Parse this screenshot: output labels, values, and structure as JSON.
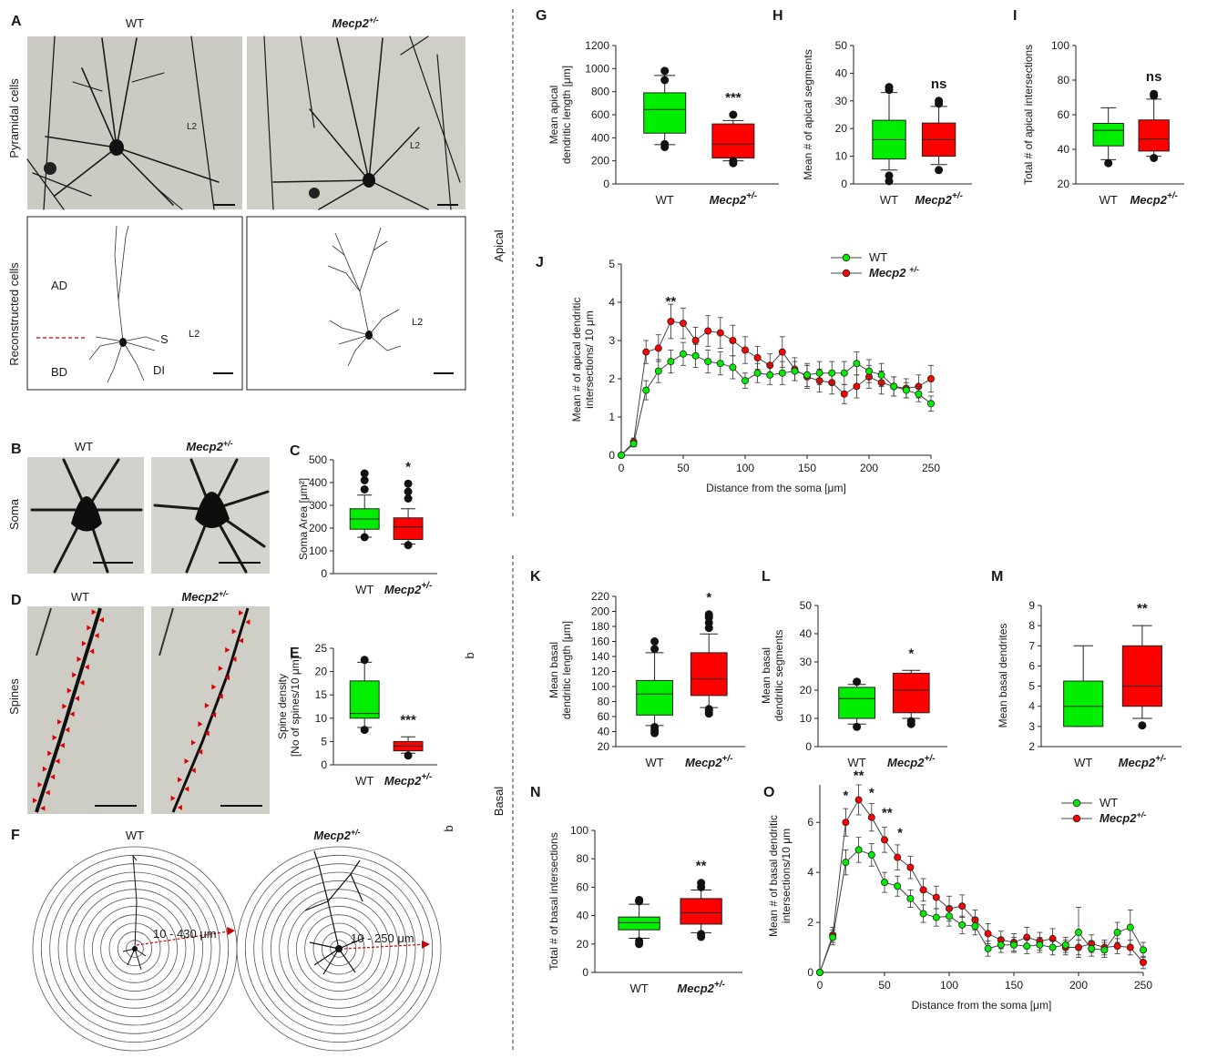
{
  "figure": {
    "section_apical": "Apical",
    "section_basal": "Basal",
    "stray_b1": "b",
    "stray_b2": "b"
  },
  "colors": {
    "wt": "#00ee00",
    "mecp2": "#ff0000",
    "micro_bg": "#c9c9c2",
    "ink": "#1a1a1a",
    "scale_red": "#cc0000"
  },
  "images": {
    "A": {
      "letter": "A",
      "col_wt": "WT",
      "col_mecp2": "Mecp2",
      "col_mecp2_sup": "+/-",
      "row1": "Pyramidal cells",
      "row2": "Reconstructed cells",
      "layer1": "L2",
      "layer2": "L2",
      "layer3": "L2",
      "layer4": "L2",
      "ad": "AD",
      "bd": "BD",
      "s": "S",
      "di": "DI"
    },
    "B": {
      "letter": "B",
      "col_wt": "WT",
      "col_mecp2": "Mecp2",
      "col_mecp2_sup": "+/-",
      "row": "Soma"
    },
    "D": {
      "letter": "D",
      "col_wt": "WT",
      "col_mecp2": "Mecp2",
      "col_mecp2_sup": "+/-",
      "row": "Spines"
    },
    "F": {
      "letter": "F",
      "col_wt": "WT",
      "col_mecp2": "Mecp2",
      "col_mecp2_sup": "+/-",
      "range_wt": "10 - 430 μm",
      "range_mecp2": "10 - 250 μm"
    }
  },
  "chart_data": [
    {
      "id": "C",
      "type": "box",
      "letter": "C",
      "ylabel": "Soma Area [μm²]",
      "ylim": [
        0,
        500
      ],
      "yticks": [
        0,
        100,
        200,
        300,
        400,
        500
      ],
      "categories": [
        "WT",
        "Mecp2"
      ],
      "cat_sup": [
        "",
        "+/-"
      ],
      "boxes": [
        {
          "whislo": 160,
          "q1": 195,
          "med": 240,
          "q3": 285,
          "whishi": 345,
          "fliers": [
            160,
            370,
            410,
            440
          ]
        },
        {
          "whislo": 130,
          "q1": 150,
          "med": 205,
          "q3": 245,
          "whishi": 285,
          "fliers": [
            125,
            330,
            360,
            395
          ]
        }
      ],
      "significance": [
        "",
        "*"
      ]
    },
    {
      "id": "E",
      "type": "box",
      "letter": "E",
      "ylabel": "Spine density",
      "ylabel2": "[No of spines/10 μm]",
      "ylim": [
        0,
        25
      ],
      "yticks": [
        0,
        5,
        10,
        15,
        20,
        25
      ],
      "categories": [
        "WT",
        "Mecp2"
      ],
      "cat_sup": [
        "",
        "+/-"
      ],
      "boxes": [
        {
          "whislo": 8,
          "q1": 10,
          "med": 11,
          "q3": 18,
          "whishi": 22,
          "fliers": [
            7.5,
            22.5
          ]
        },
        {
          "whislo": 2.5,
          "q1": 3,
          "med": 4,
          "q3": 5,
          "whishi": 6,
          "fliers": [
            2
          ]
        }
      ],
      "significance": [
        "",
        "***"
      ]
    },
    {
      "id": "G",
      "type": "box",
      "letter": "G",
      "ylabel": "Mean apical",
      "ylabel2": "dendritic length [μm]",
      "ylim": [
        0,
        1200
      ],
      "yticks": [
        0,
        200,
        400,
        600,
        800,
        1000,
        1200
      ],
      "categories": [
        "WT",
        "Mecp2"
      ],
      "cat_sup": [
        "",
        "+/-"
      ],
      "boxes": [
        {
          "whislo": 340,
          "q1": 440,
          "med": 645,
          "q3": 790,
          "whishi": 940,
          "fliers": [
            320,
            345,
            900,
            980
          ]
        },
        {
          "whislo": 200,
          "q1": 225,
          "med": 345,
          "q3": 520,
          "whishi": 550,
          "fliers": [
            180,
            200,
            600
          ]
        }
      ],
      "significance": [
        "",
        "***"
      ]
    },
    {
      "id": "H",
      "type": "box",
      "letter": "H",
      "ylabel": "Mean # of apical segments",
      "ylim": [
        0,
        50
      ],
      "yticks": [
        0,
        10,
        20,
        30,
        40,
        50
      ],
      "categories": [
        "WT",
        "Mecp2"
      ],
      "cat_sup": [
        "",
        "+/-"
      ],
      "boxes": [
        {
          "whislo": 5,
          "q1": 9,
          "med": 16,
          "q3": 23,
          "whishi": 33,
          "fliers": [
            1,
            3,
            34,
            35
          ]
        },
        {
          "whislo": 7,
          "q1": 10,
          "med": 16,
          "q3": 22,
          "whishi": 28,
          "fliers": [
            5,
            29,
            30
          ]
        }
      ],
      "significance": [
        "",
        "ns"
      ]
    },
    {
      "id": "I",
      "type": "box",
      "letter": "I",
      "ylabel": "Total # of apical intersections",
      "ylim": [
        20,
        100
      ],
      "yticks": [
        20,
        40,
        60,
        80,
        100
      ],
      "categories": [
        "WT",
        "Mecp2"
      ],
      "cat_sup": [
        "",
        "+/-"
      ],
      "boxes": [
        {
          "whislo": 34,
          "q1": 42,
          "med": 51,
          "q3": 55,
          "whishi": 64,
          "fliers": [
            32
          ]
        },
        {
          "whislo": 36,
          "q1": 39,
          "med": 46,
          "q3": 57,
          "whishi": 69,
          "fliers": [
            35,
            71,
            72
          ]
        }
      ],
      "significance": [
        "",
        "ns"
      ]
    },
    {
      "id": "J",
      "type": "line",
      "letter": "J",
      "xlabel": "Distance from the soma [μm]",
      "ylabel": "Mean # of apical dendritic",
      "ylabel2": "intersections/ 10 μm",
      "xlim": [
        0,
        250
      ],
      "ylim": [
        0,
        5
      ],
      "xticks": [
        0,
        50,
        100,
        150,
        200,
        250
      ],
      "yticks": [
        0,
        1,
        2,
        3,
        4,
        5
      ],
      "x": [
        0,
        10,
        20,
        30,
        40,
        50,
        60,
        70,
        80,
        90,
        100,
        110,
        120,
        130,
        140,
        150,
        160,
        170,
        180,
        190,
        200,
        210,
        220,
        230,
        240,
        250
      ],
      "series": [
        {
          "name": "WT",
          "sup": "",
          "values": [
            0,
            0.3,
            1.7,
            2.2,
            2.45,
            2.65,
            2.6,
            2.45,
            2.4,
            2.3,
            1.95,
            2.15,
            2.1,
            2.15,
            2.2,
            2.1,
            2.15,
            2.15,
            2.15,
            2.4,
            2.2,
            2.1,
            1.8,
            1.7,
            1.6,
            1.35
          ],
          "err": [
            0,
            0.08,
            0.25,
            0.3,
            0.3,
            0.3,
            0.3,
            0.3,
            0.3,
            0.3,
            0.2,
            0.25,
            0.25,
            0.3,
            0.25,
            0.3,
            0.3,
            0.3,
            0.3,
            0.3,
            0.3,
            0.3,
            0.25,
            0.2,
            0.2,
            0.2
          ]
        },
        {
          "name": "Mecp2 ",
          "sup": "+/-",
          "values": [
            0,
            0.35,
            2.7,
            2.8,
            3.5,
            3.45,
            3.0,
            3.25,
            3.2,
            3.0,
            2.75,
            2.55,
            2.35,
            2.7,
            2.25,
            2.05,
            1.95,
            1.9,
            1.6,
            1.8,
            2.05,
            1.9,
            1.8,
            1.75,
            1.8,
            2.0
          ],
          "err": [
            0,
            0.1,
            0.3,
            0.35,
            0.45,
            0.4,
            0.35,
            0.4,
            0.4,
            0.4,
            0.35,
            0.3,
            0.3,
            0.4,
            0.3,
            0.3,
            0.3,
            0.3,
            0.25,
            0.3,
            0.3,
            0.3,
            0.25,
            0.25,
            0.3,
            0.35
          ]
        }
      ],
      "annotations": [
        {
          "x": 40,
          "y": 3.9,
          "text": "**"
        }
      ]
    },
    {
      "id": "K",
      "type": "box",
      "letter": "K",
      "ylabel": "Mean basal",
      "ylabel2": "dendritic length [μm]",
      "ylim": [
        20,
        220
      ],
      "yticks": [
        20,
        40,
        60,
        80,
        100,
        120,
        140,
        160,
        180,
        200,
        220
      ],
      "categories": [
        "WT",
        "Mecp2"
      ],
      "cat_sup": [
        "",
        "+/-"
      ],
      "boxes": [
        {
          "whislo": 48,
          "q1": 62,
          "med": 90,
          "q3": 108,
          "whishi": 145,
          "fliers": [
            38,
            42,
            46,
            150,
            160
          ]
        },
        {
          "whislo": 72,
          "q1": 88,
          "med": 110,
          "q3": 145,
          "whishi": 170,
          "fliers": [
            64,
            68,
            70,
            178,
            185,
            192,
            196
          ]
        }
      ],
      "significance": [
        "",
        "*"
      ]
    },
    {
      "id": "L",
      "type": "box",
      "letter": "L",
      "ylabel": "Mean basal",
      "ylabel2": "dendritic segments",
      "ylim": [
        0,
        50
      ],
      "yticks": [
        0,
        10,
        20,
        30,
        40,
        50
      ],
      "categories": [
        "WT",
        "Mecp2"
      ],
      "cat_sup": [
        "",
        "+/-"
      ],
      "boxes": [
        {
          "whislo": 8,
          "q1": 10,
          "med": 17,
          "q3": 21,
          "whishi": 22,
          "fliers": [
            7,
            23
          ]
        },
        {
          "whislo": 10,
          "q1": 12,
          "med": 20,
          "q3": 26,
          "whishi": 27,
          "fliers": [
            8,
            9
          ]
        }
      ],
      "significance": [
        "",
        "*"
      ]
    },
    {
      "id": "M",
      "type": "box",
      "letter": "M",
      "ylabel": "Mean basal dendrites",
      "ylim": [
        2,
        9
      ],
      "yticks": [
        2,
        3,
        4,
        5,
        6,
        7,
        8,
        9
      ],
      "categories": [
        "WT",
        "Mecp2"
      ],
      "cat_sup": [
        "",
        "+/-"
      ],
      "boxes": [
        {
          "whislo": 3,
          "q1": 3,
          "med": 4,
          "q3": 5.25,
          "whishi": 7,
          "fliers": []
        },
        {
          "whislo": 3.4,
          "q1": 4,
          "med": 5,
          "q3": 7,
          "whishi": 8,
          "fliers": [
            3.05
          ]
        }
      ],
      "significance": [
        "",
        "**"
      ]
    },
    {
      "id": "N",
      "type": "box",
      "letter": "N",
      "ylabel": "Total # of basal intersections",
      "ylim": [
        0,
        100
      ],
      "yticks": [
        0,
        20,
        40,
        60,
        80,
        100
      ],
      "categories": [
        "WT",
        "Mecp2"
      ],
      "cat_sup": [
        "",
        "+/-"
      ],
      "boxes": [
        {
          "whislo": 24,
          "q1": 30,
          "med": 35,
          "q3": 39,
          "whishi": 48,
          "fliers": [
            20,
            22,
            50,
            51
          ]
        },
        {
          "whislo": 28,
          "q1": 34,
          "med": 42,
          "q3": 52,
          "whishi": 58,
          "fliers": [
            25,
            27,
            60,
            63
          ]
        }
      ],
      "significance": [
        "",
        "**"
      ]
    },
    {
      "id": "O",
      "type": "line",
      "letter": "O",
      "xlabel": "Distance from the soma [μm]",
      "ylabel": "Mean # of basal dendritic",
      "ylabel2": "intersections/10 μm",
      "xlim": [
        0,
        250
      ],
      "ylim": [
        0,
        7.5
      ],
      "xticks": [
        0,
        50,
        100,
        150,
        200,
        250
      ],
      "yticks": [
        0,
        2,
        4,
        6
      ],
      "x": [
        0,
        10,
        20,
        30,
        40,
        50,
        60,
        70,
        80,
        90,
        100,
        110,
        120,
        130,
        140,
        150,
        160,
        170,
        180,
        190,
        200,
        210,
        220,
        230,
        240,
        250
      ],
      "series": [
        {
          "name": "WT",
          "sup": "",
          "values": [
            0,
            1.4,
            4.4,
            4.9,
            4.7,
            3.6,
            3.45,
            2.95,
            2.35,
            2.2,
            2.25,
            1.9,
            1.85,
            0.95,
            1.1,
            1.1,
            1.05,
            1.1,
            1.0,
            1.1,
            1.6,
            0.95,
            0.9,
            1.6,
            1.8,
            0.9
          ],
          "err": [
            0,
            0.3,
            0.5,
            0.5,
            0.45,
            0.4,
            0.4,
            0.35,
            0.35,
            0.35,
            0.4,
            0.35,
            0.35,
            0.3,
            0.3,
            0.3,
            0.3,
            0.3,
            0.3,
            0.3,
            1.0,
            0.3,
            0.3,
            0.4,
            0.7,
            0.3
          ]
        },
        {
          "name": "Mecp2",
          "sup": "+/-",
          "values": [
            0,
            1.5,
            6.0,
            6.9,
            6.2,
            5.3,
            4.6,
            4.2,
            3.3,
            3.0,
            2.55,
            2.65,
            2.1,
            1.55,
            1.3,
            1.2,
            1.4,
            1.25,
            1.35,
            1.0,
            1.0,
            1.15,
            1.0,
            1.05,
            1.0,
            0.4
          ],
          "err": [
            0,
            0.3,
            0.55,
            0.6,
            0.55,
            0.5,
            0.5,
            0.45,
            0.45,
            0.45,
            0.5,
            0.45,
            0.4,
            0.4,
            0.35,
            0.35,
            0.4,
            0.35,
            0.4,
            0.3,
            0.3,
            0.35,
            0.3,
            0.3,
            0.3,
            0.25
          ]
        }
      ],
      "annotations": [
        {
          "x": 20,
          "y": 6.9,
          "text": "*"
        },
        {
          "x": 30,
          "y": 7.7,
          "text": "**"
        },
        {
          "x": 40,
          "y": 7.0,
          "text": "*"
        },
        {
          "x": 52,
          "y": 6.2,
          "text": "**"
        },
        {
          "x": 62,
          "y": 5.4,
          "text": "*"
        }
      ]
    }
  ]
}
